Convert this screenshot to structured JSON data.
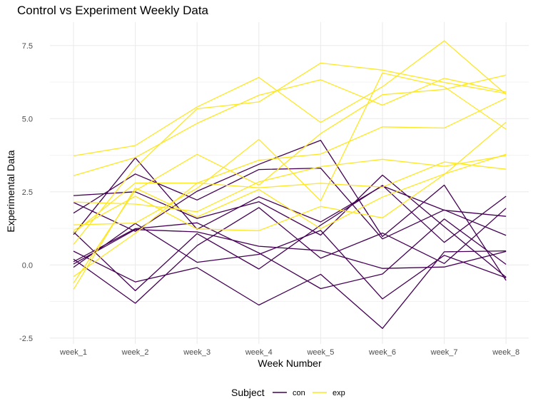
{
  "chart_data": {
    "type": "line",
    "title": "Control vs Experiment Weekly Data",
    "xlabel": "Week Number",
    "ylabel": "Experimental Data",
    "categories": [
      "week_1",
      "week_2",
      "week_3",
      "week_4",
      "week_5",
      "week_6",
      "week_7",
      "week_8"
    ],
    "ylim": [
      -2.7,
      8.3
    ],
    "yticks": [
      -2.5,
      0.0,
      2.5,
      5.0,
      7.5
    ],
    "ytick_labels": [
      "-2.5",
      "0.0",
      "2.5",
      "5.0",
      "7.5"
    ],
    "grid": true,
    "legend": {
      "position": "bottom",
      "title": "Subject",
      "entries": [
        {
          "label": "con",
          "color": "#440154"
        },
        {
          "label": "exp",
          "color": "#FDE725"
        }
      ]
    },
    "series": [
      {
        "group": "con",
        "color": "#440154",
        "values": [
          0.2,
          -1.31,
          0.66,
          1.96,
          0.23,
          1.09,
          0.05,
          1.94
        ]
      },
      {
        "group": "con",
        "color": "#440154",
        "values": [
          1.13,
          -0.88,
          1.07,
          -0.14,
          1.36,
          2.72,
          0.77,
          2.35
        ]
      },
      {
        "group": "con",
        "color": "#440154",
        "values": [
          1.77,
          3.11,
          2.22,
          3.26,
          3.31,
          0.89,
          1.88,
          1.01
        ]
      },
      {
        "group": "con",
        "color": "#440154",
        "values": [
          1.04,
          3.66,
          1.22,
          2.33,
          1.47,
          2.7,
          1.87,
          1.66
        ]
      },
      {
        "group": "con",
        "color": "#440154",
        "values": [
          0.47,
          -0.58,
          -0.09,
          -1.37,
          -0.32,
          -2.17,
          0.45,
          0.48
        ]
      },
      {
        "group": "con",
        "color": "#440154",
        "values": [
          2.37,
          2.5,
          1.59,
          2.16,
          1.02,
          3.07,
          1.31,
          -0.42
        ]
      },
      {
        "group": "con",
        "color": "#440154",
        "values": [
          0.03,
          1.21,
          1.13,
          0.64,
          0.49,
          -0.12,
          -0.07,
          0.46
        ]
      },
      {
        "group": "con",
        "color": "#440154",
        "values": [
          -0.08,
          1.42,
          0.09,
          0.36,
          1.18,
          -1.16,
          0.33,
          -0.44
        ]
      },
      {
        "group": "con",
        "color": "#440154",
        "values": [
          2.14,
          1.15,
          2.52,
          3.44,
          4.26,
          0.97,
          2.73,
          -0.53
        ]
      },
      {
        "group": "con",
        "color": "#440154",
        "values": [
          0.11,
          1.24,
          1.44,
          0.41,
          -0.81,
          -0.31,
          1.57,
          0.02
        ]
      },
      {
        "group": "exp",
        "color": "#FDE725",
        "values": [
          3.05,
          3.67,
          4.84,
          5.8,
          6.33,
          5.46,
          6.38,
          5.91
        ]
      },
      {
        "group": "exp",
        "color": "#FDE725",
        "values": [
          -0.84,
          2.63,
          1.64,
          2.58,
          1.24,
          2.32,
          3.11,
          3.78
        ]
      },
      {
        "group": "exp",
        "color": "#FDE725",
        "values": [
          2.15,
          2.08,
          1.82,
          2.84,
          3.36,
          3.61,
          3.37,
          3.74
        ]
      },
      {
        "group": "exp",
        "color": "#FDE725",
        "values": [
          -0.62,
          2.54,
          3.78,
          2.73,
          4.49,
          5.82,
          6.0,
          6.49
        ]
      },
      {
        "group": "exp",
        "color": "#FDE725",
        "values": [
          0.7,
          3.33,
          5.34,
          5.57,
          6.9,
          6.66,
          6.24,
          5.86
        ]
      },
      {
        "group": "exp",
        "color": "#FDE725",
        "values": [
          3.73,
          4.08,
          5.4,
          6.41,
          4.87,
          6.09,
          7.66,
          5.83
        ]
      },
      {
        "group": "exp",
        "color": "#FDE725",
        "values": [
          1.18,
          2.35,
          1.23,
          1.17,
          2.0,
          1.61,
          3.09,
          4.88
        ]
      },
      {
        "group": "exp",
        "color": "#FDE725",
        "values": [
          1.37,
          1.43,
          2.62,
          4.29,
          2.19,
          6.56,
          6.09,
          4.64
        ]
      },
      {
        "group": "exp",
        "color": "#FDE725",
        "values": [
          -0.4,
          1.08,
          2.8,
          3.58,
          3.79,
          4.72,
          4.68,
          5.7
        ]
      },
      {
        "group": "exp",
        "color": "#FDE725",
        "values": [
          1.09,
          2.8,
          2.8,
          2.64,
          2.79,
          2.66,
          3.52,
          3.27
        ]
      }
    ]
  }
}
